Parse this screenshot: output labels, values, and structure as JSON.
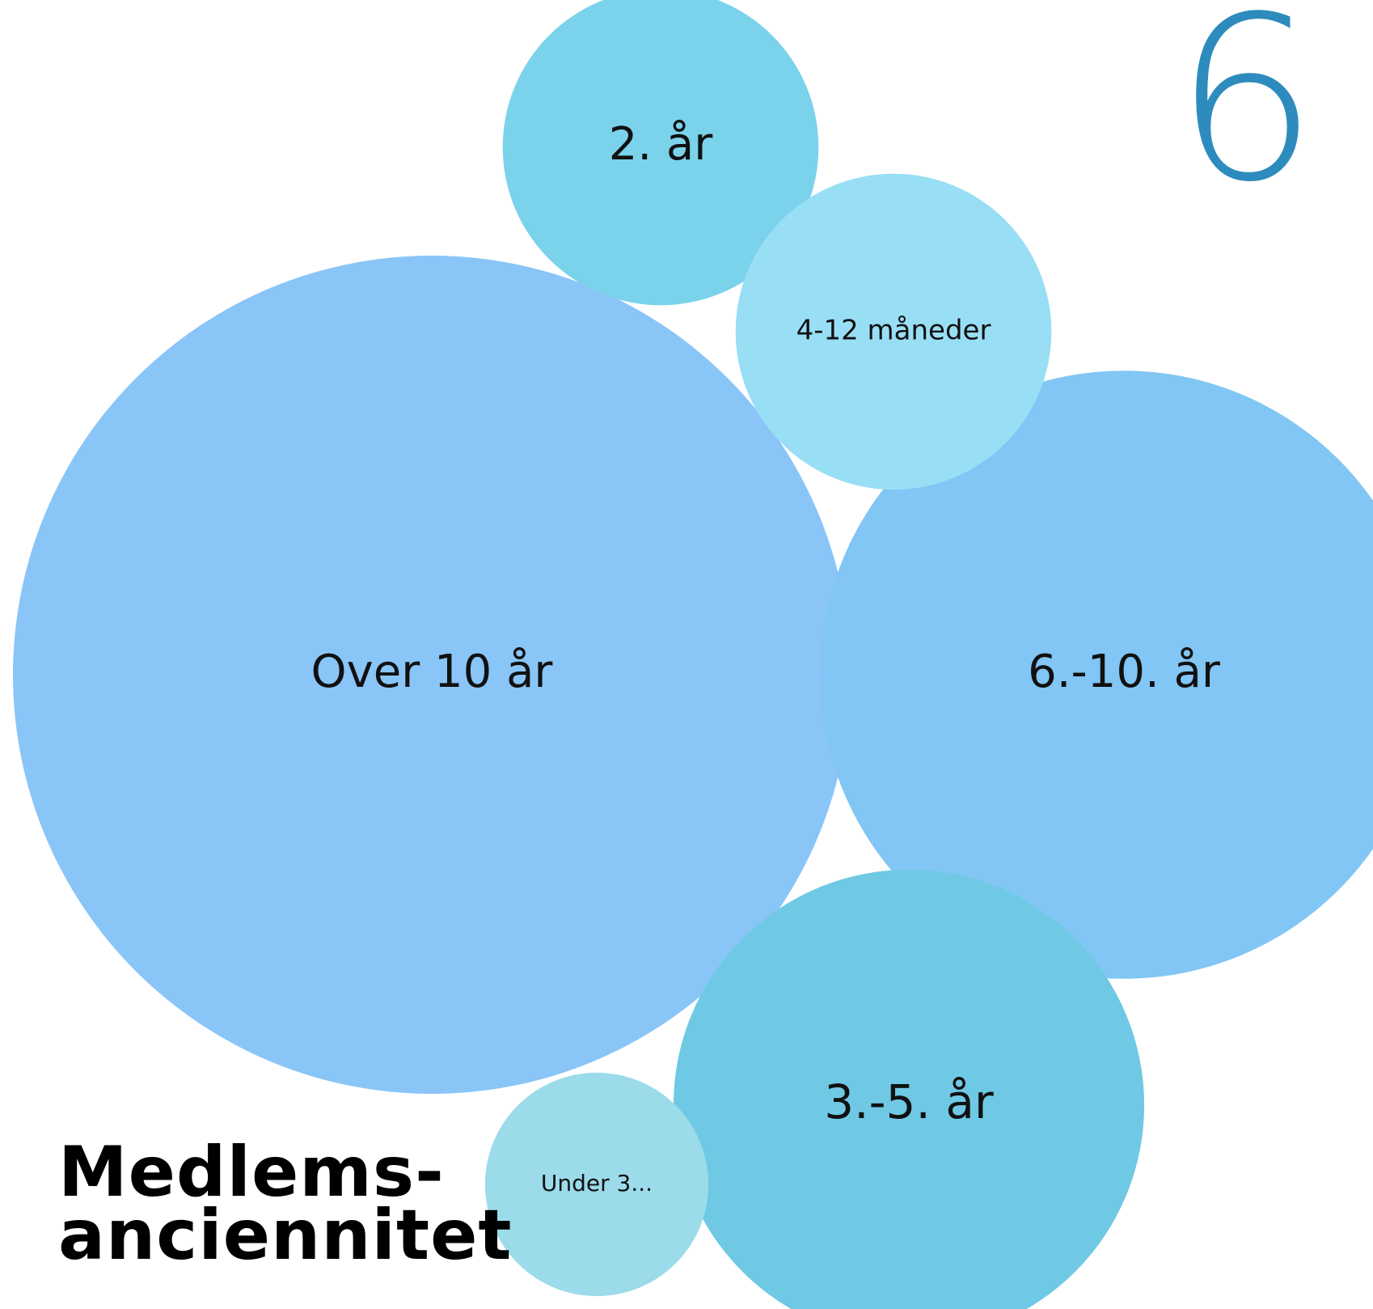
{
  "chart_data": {
    "type": "bubble",
    "title_lines": [
      "Medlems-",
      "anciennitet"
    ],
    "big_stat": "6 %",
    "categories": [
      "Over 10 år",
      "6.-10. år",
      "3.-5. år",
      "2. år",
      "4-12 måneder",
      "Under 3..."
    ],
    "values": [
      38,
      20,
      12,
      5.4,
      5.4,
      2.7
    ],
    "colors": [
      "#8AC5F8",
      "#81C6F4",
      "#6FC9E4",
      "#7BD2EB",
      "#98DFF5",
      "#9BDBEA"
    ]
  },
  "colors": {
    "accent": "#2E8BBD"
  }
}
